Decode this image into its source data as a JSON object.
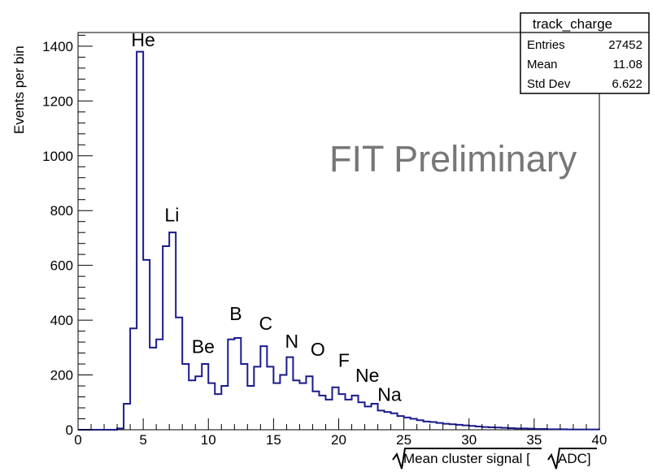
{
  "chart_data": {
    "type": "histogram",
    "ylabel": "Events per bin",
    "xlabel": "Mean cluster signal [",
    "xlabel_unit": "ADC]",
    "xlim": [
      0,
      40
    ],
    "ylim": [
      0,
      1450
    ],
    "bin_width": 0.5,
    "x_ticks": [
      "0",
      "5",
      "10",
      "15",
      "20",
      "25",
      "30",
      "35",
      "40"
    ],
    "y_ticks": [
      "0",
      "200",
      "400",
      "600",
      "800",
      "1000",
      "1200",
      "1400"
    ],
    "x_tick_values": [
      0,
      5,
      10,
      15,
      20,
      25,
      30,
      35,
      40
    ],
    "y_tick_values": [
      0,
      200,
      400,
      600,
      800,
      1000,
      1200,
      1400
    ],
    "line_color": "#1a1a8c",
    "bin_low_edges": [
      3.0,
      3.5,
      4.0,
      4.5,
      5.0,
      5.5,
      6.0,
      6.5,
      7.0,
      7.5,
      8.0,
      8.5,
      9.0,
      9.5,
      10.0,
      10.5,
      11.0,
      11.5,
      12.0,
      12.5,
      13.0,
      13.5,
      14.0,
      14.5,
      15.0,
      15.5,
      16.0,
      16.5,
      17.0,
      17.5,
      18.0,
      18.5,
      19.0,
      19.5,
      20.0,
      20.5,
      21.0,
      21.5,
      22.0,
      22.5,
      23.0,
      23.5,
      24.0,
      24.5,
      25.0,
      25.5,
      26.0,
      26.5,
      27.0,
      27.5,
      28.0,
      28.5,
      29.0,
      29.5,
      30.0,
      30.5,
      31.0,
      31.5,
      32.0,
      32.5,
      33.0,
      33.5,
      34.0,
      34.5,
      35.0,
      35.5,
      36.0,
      36.5,
      37.0,
      37.5,
      38.0,
      38.5,
      39.0,
      39.5
    ],
    "counts": [
      5,
      95,
      370,
      1380,
      620,
      300,
      330,
      670,
      720,
      410,
      240,
      180,
      195,
      240,
      170,
      130,
      160,
      330,
      335,
      240,
      160,
      230,
      305,
      230,
      170,
      200,
      265,
      180,
      170,
      195,
      140,
      125,
      110,
      155,
      130,
      110,
      125,
      100,
      85,
      95,
      70,
      65,
      60,
      50,
      45,
      40,
      35,
      30,
      28,
      25,
      22,
      20,
      18,
      16,
      14,
      12,
      10,
      9,
      8,
      7,
      6,
      5,
      5,
      4,
      3,
      3,
      2,
      2,
      2,
      1,
      1,
      1,
      1,
      1
    ],
    "peak_labels": [
      {
        "text": "He",
        "x": 5.0,
        "y": 1400
      },
      {
        "text": "Li",
        "x": 7.2,
        "y": 760
      },
      {
        "text": "Be",
        "x": 9.6,
        "y": 280
      },
      {
        "text": "B",
        "x": 12.1,
        "y": 400
      },
      {
        "text": "C",
        "x": 14.4,
        "y": 365
      },
      {
        "text": "N",
        "x": 16.4,
        "y": 300
      },
      {
        "text": "O",
        "x": 18.4,
        "y": 270
      },
      {
        "text": "F",
        "x": 20.4,
        "y": 230
      },
      {
        "text": "Ne",
        "x": 22.2,
        "y": 175
      },
      {
        "text": "Na",
        "x": 23.9,
        "y": 105
      }
    ],
    "watermark": "FIT Preliminary",
    "stats_box": {
      "title": "track_charge",
      "rows": [
        {
          "label": "Entries",
          "value": "27452"
        },
        {
          "label": "Mean",
          "value": "11.08"
        },
        {
          "label": "Std Dev",
          "value": "6.622"
        }
      ]
    }
  }
}
